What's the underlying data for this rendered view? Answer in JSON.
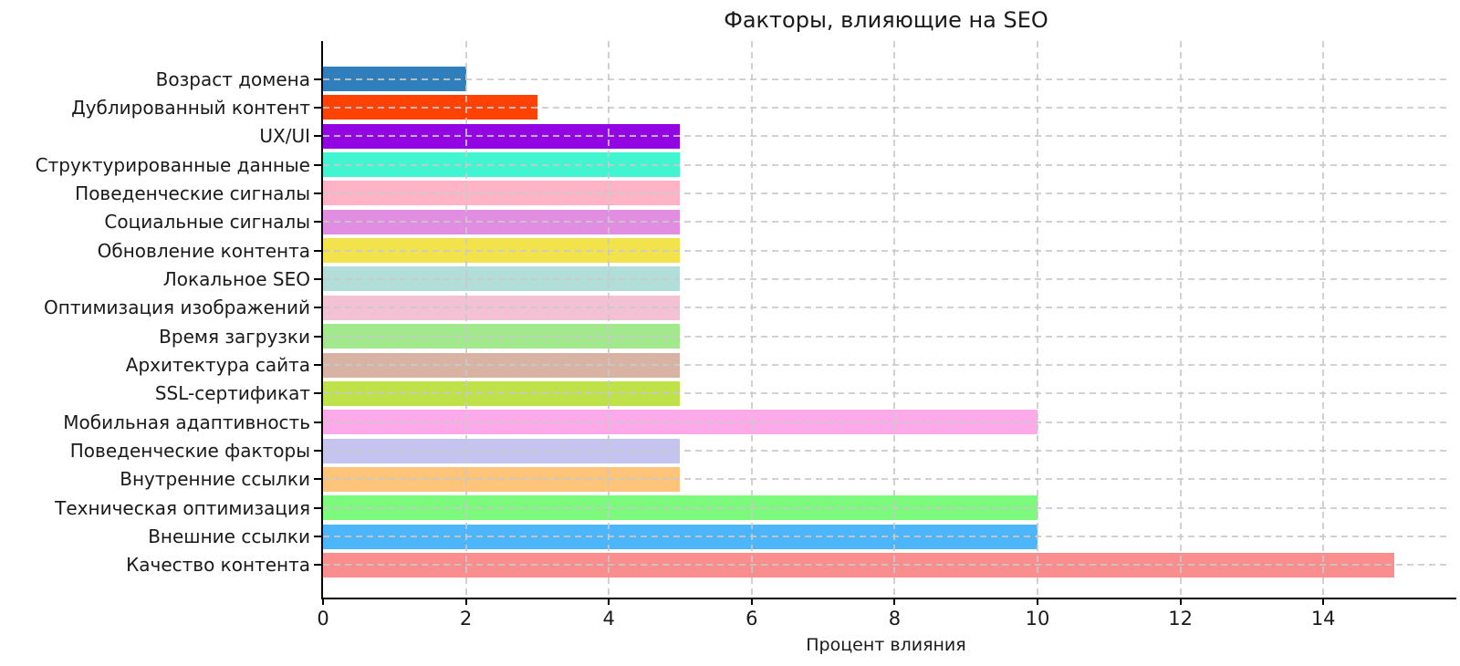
{
  "title": "Факторы, влияющие на SEO",
  "chart_data": {
    "type": "bar",
    "orientation": "horizontal",
    "title": "Факторы, влияющие на SEO",
    "xlabel": "Процент влияния",
    "ylabel": "",
    "categories": [
      "Возраст домена",
      "Дублированный контент",
      "UX/UI",
      "Структурированные данные",
      "Поведенческие сигналы",
      "Социальные сигналы",
      "Обновление контента",
      "Локальное SEO",
      "Оптимизация изображений",
      "Время загрузки",
      "Архитектура сайта",
      "SSL-сертификат",
      "Мобильная адаптивность",
      "Поведенческие факторы",
      "Внутренние ссылки",
      "Техническая оптимизация",
      "Внешние ссылки",
      "Качество контента"
    ],
    "values": [
      2,
      3,
      5,
      5,
      5,
      5,
      5,
      5,
      5,
      5,
      5,
      5,
      10,
      5,
      5,
      10,
      10,
      15
    ],
    "bar_colors": [
      "#2f7fbc",
      "#fe4203",
      "#9305e2",
      "#40f5d0",
      "#ffb3c7",
      "#e18de1",
      "#f2e24c",
      "#b2ded9",
      "#f3c0d4",
      "#a2e88d",
      "#d8b2a2",
      "#bfe24b",
      "#fea9ea",
      "#c5c4f0",
      "#fec479",
      "#7bfa7b",
      "#4db5fa",
      "#fa8d8d"
    ],
    "x_ticks": [
      0,
      2,
      4,
      6,
      8,
      10,
      12,
      14
    ],
    "xlim": [
      0,
      15.76
    ],
    "grid": "dashed, both axes, light gray, drawn over bars",
    "background": "#ffffff",
    "text_color": "#1a1a1a"
  }
}
